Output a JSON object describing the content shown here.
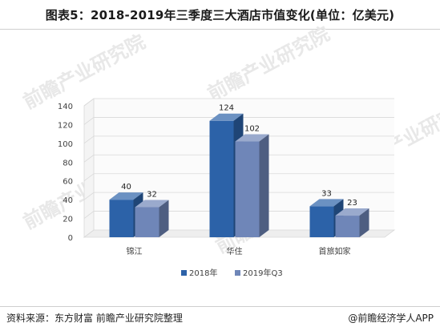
{
  "title": "图表5：2018-2019年三季度三大酒店市值变化(单位：亿美元)",
  "footer": {
    "source": "资料来源：东方财富 前瞻产业研究院整理",
    "credit": "@前瞻经济学人APP"
  },
  "watermark": "前瞻产业研究院",
  "colors": {
    "series_2018": "#2c62a8",
    "series_2019q3": "#6f86b8",
    "grid": "#d9d9d9",
    "text": "#404040"
  },
  "chart_data": {
    "type": "bar",
    "categories": [
      "锦江",
      "华住",
      "首旅如家"
    ],
    "series": [
      {
        "name": "2018年",
        "values": [
          40,
          124,
          33
        ]
      },
      {
        "name": "2019年Q3",
        "values": [
          32,
          102,
          23
        ]
      }
    ],
    "title": "",
    "xlabel": "",
    "ylabel": "",
    "ylim": [
      0,
      140
    ],
    "yticks": [
      0,
      20,
      40,
      60,
      80,
      100,
      120,
      140
    ],
    "grid": true,
    "legend": "bottom",
    "style": "3d"
  }
}
